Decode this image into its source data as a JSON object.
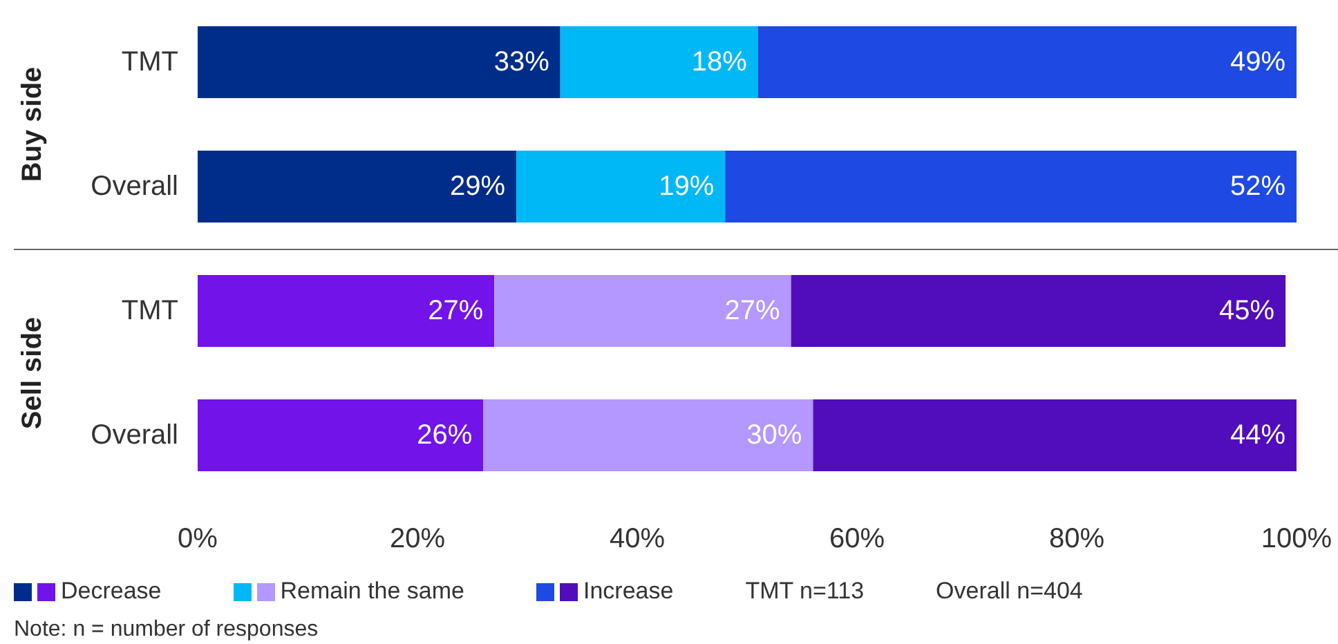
{
  "chart_data": {
    "type": "bar",
    "orientation": "horizontal",
    "stacked": true,
    "categories": [
      "TMT",
      "Overall",
      "TMT",
      "Overall"
    ],
    "series": [
      {
        "name": "Decrease",
        "colors": [
          "#002d8a",
          "#002d8a",
          "#7213ea",
          "#7213ea"
        ],
        "values": [
          33,
          29,
          27,
          26
        ],
        "value_labels": [
          "33%",
          "29%",
          "27%",
          "26%"
        ]
      },
      {
        "name": "Remain the same",
        "colors": [
          "#00b8f5",
          "#00b8f5",
          "#b497ff",
          "#b497ff"
        ],
        "values": [
          18,
          19,
          27,
          30
        ],
        "value_labels": [
          "18%",
          "19%",
          "27%",
          "30%"
        ]
      },
      {
        "name": "Increase",
        "colors": [
          "#1e49e2",
          "#1e49e2",
          "#510dbc",
          "#510dbc"
        ],
        "values": [
          49,
          52,
          45,
          44
        ],
        "value_labels": [
          "49%",
          "52%",
          "45%",
          "44%"
        ]
      }
    ],
    "xlim": [
      0,
      100
    ],
    "xticks": [
      {
        "value": 0,
        "label": "0%"
      },
      {
        "value": 20,
        "label": "20%"
      },
      {
        "value": 40,
        "label": "40%"
      },
      {
        "value": 60,
        "label": "60%"
      },
      {
        "value": 80,
        "label": "80%"
      },
      {
        "value": 100,
        "label": "100%"
      }
    ],
    "grid": false,
    "legend": "bottom left",
    "annotations": [
      "Buy side",
      "Sell side",
      "TMT n=113",
      "Overall n=404",
      "Note: n = number of responses"
    ]
  }
}
